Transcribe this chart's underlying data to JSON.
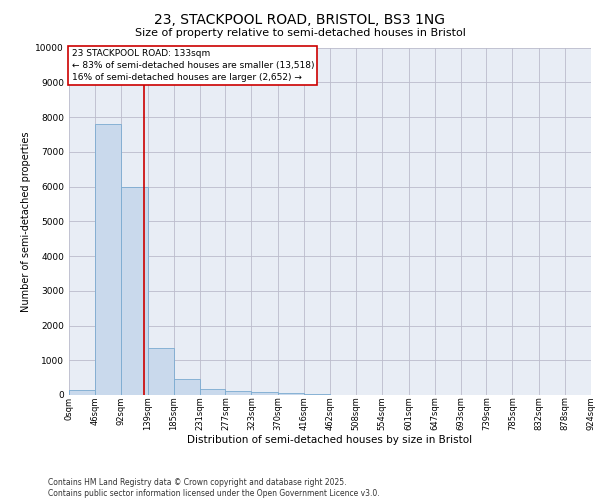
{
  "title_line1": "23, STACKPOOL ROAD, BRISTOL, BS3 1NG",
  "title_line2": "Size of property relative to semi-detached houses in Bristol",
  "xlabel": "Distribution of semi-detached houses by size in Bristol",
  "ylabel": "Number of semi-detached properties",
  "footer_line1": "Contains HM Land Registry data © Crown copyright and database right 2025.",
  "footer_line2": "Contains public sector information licensed under the Open Government Licence v3.0.",
  "annotation_line1": "23 STACKPOOL ROAD: 133sqm",
  "annotation_line2": "← 83% of semi-detached houses are smaller (13,518)",
  "annotation_line3": "16% of semi-detached houses are larger (2,652) →",
  "property_size": 133,
  "bin_edges": [
    0,
    46,
    92,
    139,
    185,
    231,
    277,
    323,
    370,
    416,
    462,
    508,
    554,
    601,
    647,
    693,
    739,
    785,
    832,
    878,
    924
  ],
  "bin_labels": [
    "0sqm",
    "46sqm",
    "92sqm",
    "139sqm",
    "185sqm",
    "231sqm",
    "277sqm",
    "323sqm",
    "370sqm",
    "416sqm",
    "462sqm",
    "508sqm",
    "554sqm",
    "601sqm",
    "647sqm",
    "693sqm",
    "739sqm",
    "785sqm",
    "832sqm",
    "878sqm",
    "924sqm"
  ],
  "bar_heights": [
    150,
    7800,
    6000,
    1350,
    450,
    175,
    125,
    75,
    50,
    20,
    10,
    5,
    3,
    2,
    1,
    1,
    0,
    0,
    0,
    0
  ],
  "bar_color": "#c9d9ec",
  "bar_edge_color": "#7aaad0",
  "grid_color": "#bbbbcc",
  "background_color": "#e8edf5",
  "annotation_box_color": "#ffffff",
  "annotation_border_color": "#cc0000",
  "vline_color": "#cc0000",
  "ylim": [
    0,
    10000
  ],
  "yticks": [
    0,
    1000,
    2000,
    3000,
    4000,
    5000,
    6000,
    7000,
    8000,
    9000,
    10000
  ],
  "title_fontsize": 10,
  "subtitle_fontsize": 8,
  "ylabel_fontsize": 7,
  "xlabel_fontsize": 7.5,
  "tick_fontsize": 6,
  "annotation_fontsize": 6.5,
  "footer_fontsize": 5.5
}
